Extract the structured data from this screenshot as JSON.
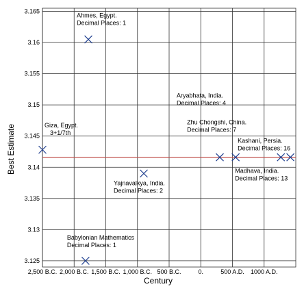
{
  "chart_data": {
    "type": "scatter",
    "xlabel": "Century",
    "ylabel": "Best Estimate",
    "xlim": [
      -2500,
      1500
    ],
    "ylim": [
      3.124,
      3.1655
    ],
    "xticks": [
      {
        "value": -2500,
        "label": "2,500 B.C."
      },
      {
        "value": -2000,
        "label": "2,000 B.C."
      },
      {
        "value": -1500,
        "label": "1,500 B.C."
      },
      {
        "value": -1000,
        "label": "1,000 B.C."
      },
      {
        "value": -500,
        "label": "500 B.C."
      },
      {
        "value": 0,
        "label": "0."
      },
      {
        "value": 500,
        "label": "500 A.D."
      },
      {
        "value": 1000,
        "label": "1000 A.D."
      }
    ],
    "yticks": [
      3.125,
      3.13,
      3.135,
      3.14,
      3.145,
      3.15,
      3.155,
      3.16,
      3.165
    ],
    "grid": true,
    "reference_line": {
      "value": 3.14159,
      "color": "#c0504d"
    },
    "series": [
      {
        "color": "#1f3f8f",
        "x": [
          -2500,
          -1775,
          -1820,
          -900,
          300,
          550,
          1265,
          1415
        ],
        "values": [
          3.1428,
          3.1605,
          3.125,
          3.139,
          3.1416,
          3.1416,
          3.1416,
          3.1416
        ],
        "point_labels": [
          [
            "Giza, Egypt.",
            "3+1/7th"
          ],
          [
            "Ahmes, Egypt.",
            "Decimal Places: 1"
          ],
          [
            "Babylonian Mathematics",
            "Decimal Places: 1"
          ],
          [
            "Yajnavalkya, India.",
            "Decimal Places: 2"
          ],
          [
            "Aryabhata, India.",
            "Decimal Places: 4"
          ],
          [
            "Zhu Chongshi, China.",
            "Decimal Places: 7"
          ],
          [
            "Madhava, India.",
            "Decimal Places: 13"
          ],
          [
            "Kashani, Persia.",
            "Decimal Places: 16"
          ]
        ]
      }
    ]
  }
}
